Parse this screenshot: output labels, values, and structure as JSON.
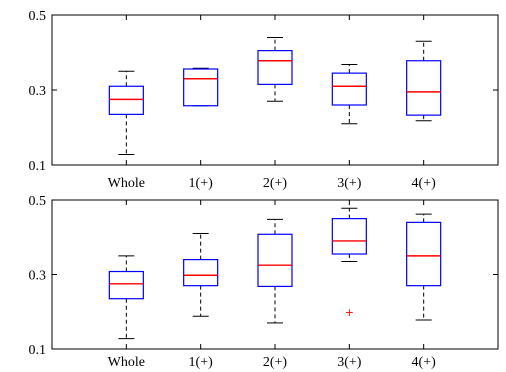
{
  "chart_data": [
    {
      "type": "box",
      "categories": [
        "Whole",
        "1(+)",
        "2(+)",
        "3(+)",
        "4(+)"
      ],
      "ylim": [
        0.1,
        0.5
      ],
      "yticks": [
        "0.1",
        "0.3",
        "0.5"
      ],
      "grid": false,
      "boxes": [
        {
          "min": 0.128,
          "q1": 0.235,
          "median": 0.275,
          "q3": 0.31,
          "max": 0.35
        },
        {
          "min": 0.258,
          "q1": 0.258,
          "median": 0.33,
          "q3": 0.356,
          "max": 0.358
        },
        {
          "min": 0.27,
          "q1": 0.315,
          "median": 0.378,
          "q3": 0.405,
          "max": 0.44
        },
        {
          "min": 0.21,
          "q1": 0.26,
          "median": 0.31,
          "q3": 0.345,
          "max": 0.368
        },
        {
          "min": 0.218,
          "q1": 0.233,
          "median": 0.295,
          "q3": 0.378,
          "max": 0.43
        }
      ],
      "outliers": []
    },
    {
      "type": "box",
      "categories": [
        "Whole",
        "1(+)",
        "2(+)",
        "3(+)",
        "4(+)"
      ],
      "ylim": [
        0.1,
        0.5
      ],
      "yticks": [
        "0.1",
        "0.3",
        "0.5"
      ],
      "grid": false,
      "boxes": [
        {
          "min": 0.128,
          "q1": 0.235,
          "median": 0.275,
          "q3": 0.308,
          "max": 0.35
        },
        {
          "min": 0.188,
          "q1": 0.27,
          "median": 0.298,
          "q3": 0.34,
          "max": 0.41
        },
        {
          "min": 0.17,
          "q1": 0.268,
          "median": 0.325,
          "q3": 0.408,
          "max": 0.448
        },
        {
          "min": 0.335,
          "q1": 0.355,
          "median": 0.39,
          "q3": 0.45,
          "max": 0.478
        },
        {
          "min": 0.178,
          "q1": 0.27,
          "median": 0.35,
          "q3": 0.44,
          "max": 0.462
        }
      ],
      "outliers": [
        {
          "category": 3,
          "value": 0.2
        }
      ]
    }
  ]
}
